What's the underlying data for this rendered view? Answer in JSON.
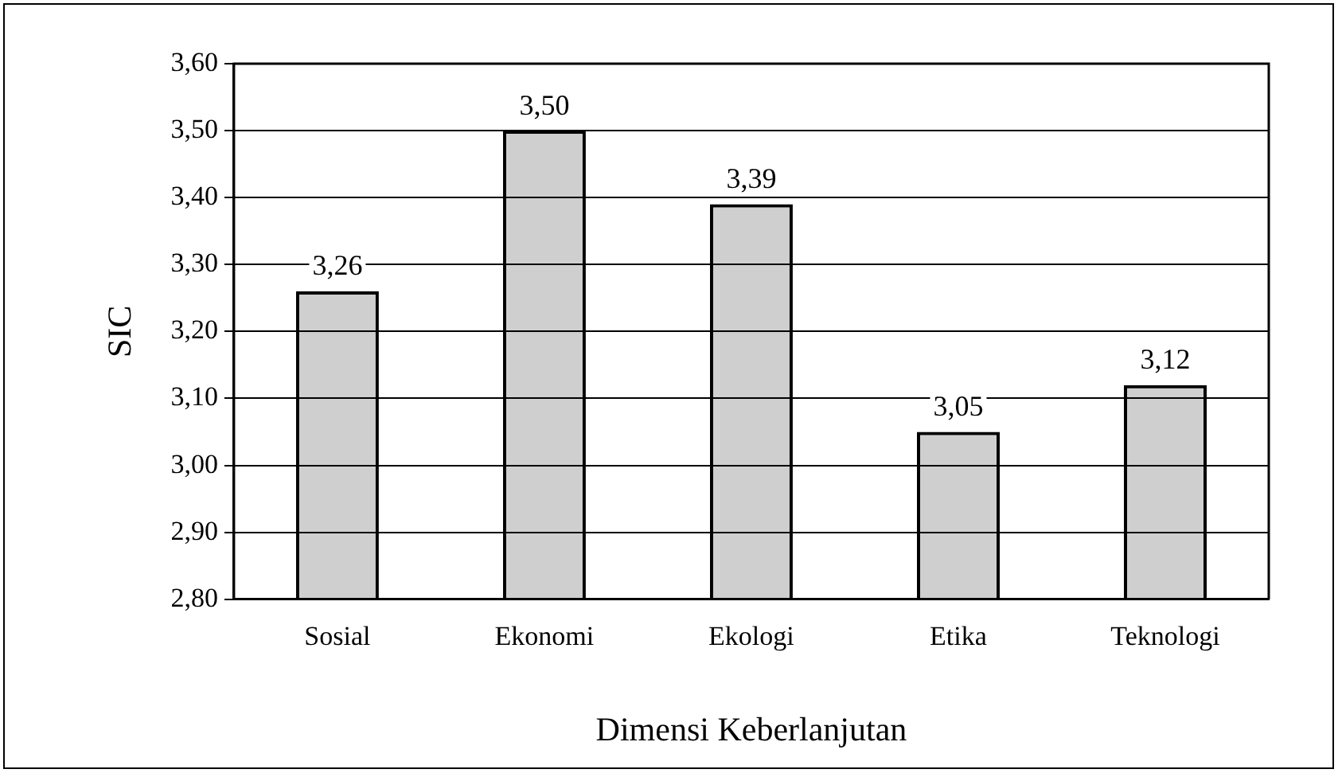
{
  "chart_data": {
    "type": "bar",
    "xlabel": "Dimensi Keberlanjutan",
    "ylabel": "SIC",
    "categories": [
      "Sosial",
      "Ekonomi",
      "Ekologi",
      "Etika",
      "Teknologi"
    ],
    "values": [
      3.26,
      3.5,
      3.39,
      3.05,
      3.12
    ],
    "value_labels": [
      "3,26",
      "3,50",
      "3,39",
      "3,05",
      "3,12"
    ],
    "color": "#000000",
    "ylim": [
      2.8,
      3.6
    ],
    "yticks": [
      {
        "value": 2.8,
        "label": "2,80"
      },
      {
        "value": 2.9,
        "label": "2,90"
      },
      {
        "value": 3.0,
        "label": "3,00"
      },
      {
        "value": 3.1,
        "label": "3,10"
      },
      {
        "value": 3.2,
        "label": "3,20"
      },
      {
        "value": 3.3,
        "label": "3,30"
      },
      {
        "value": 3.4,
        "label": "3,40"
      },
      {
        "value": 3.5,
        "label": "3,50"
      },
      {
        "value": 3.6,
        "label": "3,60"
      }
    ],
    "grid": "y",
    "legend": false
  }
}
